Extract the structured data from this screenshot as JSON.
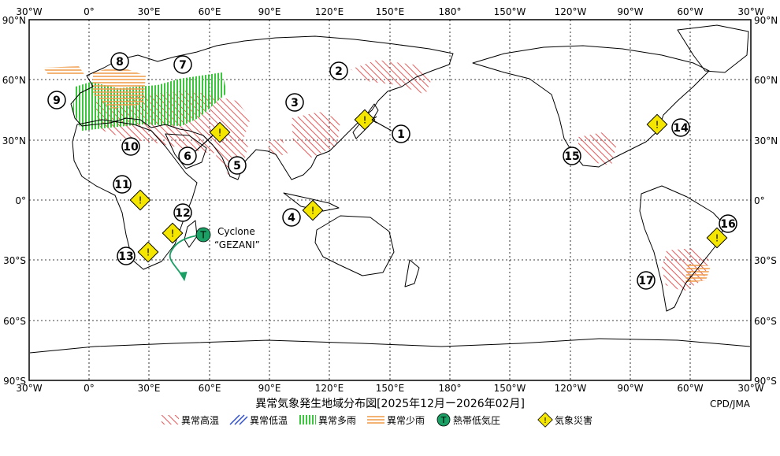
{
  "title": "異常気象発生地域分布図[2025年12月ー2026年02月]",
  "credit": "CPD/JMA",
  "lon_labels": [
    "30°W",
    "0°",
    "30°E",
    "60°E",
    "90°E",
    "120°E",
    "150°E",
    "180°",
    "150°W",
    "120°W",
    "90°W",
    "60°W",
    "30°W"
  ],
  "lat_labels": [
    "90°N",
    "60°N",
    "30°N",
    "0°",
    "30°S",
    "60°S",
    "90°S"
  ],
  "cyclone": {
    "line1": "Cyclone",
    "line2": "“GEZANI”"
  },
  "markers": [
    "1",
    "2",
    "3",
    "4",
    "5",
    "6",
    "7",
    "8",
    "9",
    "10",
    "11",
    "12",
    "13",
    "14",
    "15",
    "16",
    "17"
  ],
  "legend": {
    "warm": "異常高温",
    "cold": "異常低温",
    "wet": "異常多雨",
    "dry": "異常少雨",
    "tc": "熱帯低気圧",
    "disaster": "気象災害",
    "tc_symbol": "T",
    "disaster_symbol": "!"
  },
  "colors": {
    "warm": "#e85a5a",
    "cold": "#3050c8",
    "wet": "#3cc83c",
    "dry": "#f0a050",
    "tc": "#1aa064",
    "disaster": "#f5e600"
  }
}
